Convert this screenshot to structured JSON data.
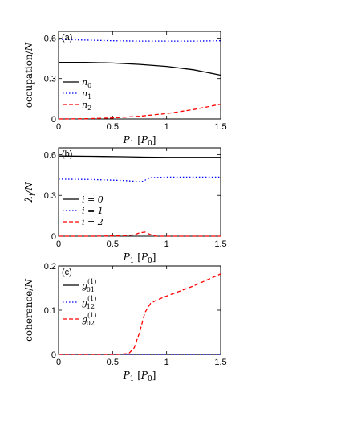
{
  "chart_data": [
    {
      "type": "line",
      "panel_label": "(a)",
      "xlabel": "P_1 [P_0]",
      "ylabel": "occupation/N",
      "xlim": [
        0,
        1.5
      ],
      "ylim": [
        0,
        0.65
      ],
      "xticks": [
        "0",
        "0.5",
        "1",
        "1.5"
      ],
      "xtick_values": [
        0,
        0.5,
        1,
        1.5
      ],
      "yticks": [
        "0",
        "0.3",
        "0.6"
      ],
      "ytick_values": [
        0,
        0.3,
        0.6
      ],
      "legend_position": "bottom-left",
      "series": [
        {
          "name": "n_0",
          "style": "solid",
          "color": "#000000",
          "x": [
            0,
            0.25,
            0.5,
            0.75,
            1.0,
            1.25,
            1.5
          ],
          "y": [
            0.42,
            0.42,
            0.415,
            0.405,
            0.39,
            0.365,
            0.325
          ]
        },
        {
          "name": "n_1",
          "style": "dotted",
          "color": "#0000ff",
          "x": [
            0,
            0.25,
            0.5,
            0.75,
            1.0,
            1.25,
            1.5
          ],
          "y": [
            0.59,
            0.585,
            0.58,
            0.578,
            0.578,
            0.578,
            0.58
          ]
        },
        {
          "name": "n_2",
          "style": "dashed",
          "color": "#ff0000",
          "x": [
            0,
            0.25,
            0.5,
            0.75,
            1.0,
            1.25,
            1.5
          ],
          "y": [
            0.0,
            0.002,
            0.008,
            0.02,
            0.04,
            0.07,
            0.11
          ]
        }
      ]
    },
    {
      "type": "line",
      "panel_label": "(b)",
      "xlabel": "P_1 [P_0]",
      "ylabel": "λ_i/N",
      "xlim": [
        0,
        1.5
      ],
      "ylim": [
        0,
        0.65
      ],
      "xticks": [
        "0",
        "0.5",
        "1",
        "1.5"
      ],
      "xtick_values": [
        0,
        0.5,
        1,
        1.5
      ],
      "yticks": [
        "0",
        "0.3",
        "0.6"
      ],
      "ytick_values": [
        0,
        0.3,
        0.6
      ],
      "legend_position": "bottom-left",
      "series": [
        {
          "name": "i = 0",
          "style": "solid",
          "color": "#000000",
          "x": [
            0,
            0.3,
            0.6,
            0.8,
            1.0,
            1.25,
            1.5
          ],
          "y": [
            0.59,
            0.588,
            0.585,
            0.582,
            0.58,
            0.58,
            0.58
          ]
        },
        {
          "name": "i = 1",
          "style": "dotted",
          "color": "#0000ff",
          "x": [
            0,
            0.3,
            0.6,
            0.7,
            0.75,
            0.78,
            0.85,
            1.0,
            1.25,
            1.5
          ],
          "y": [
            0.42,
            0.418,
            0.41,
            0.405,
            0.4,
            0.405,
            0.43,
            0.435,
            0.435,
            0.435
          ]
        },
        {
          "name": "i = 2",
          "style": "dashed",
          "color": "#ff0000",
          "x": [
            0,
            0.3,
            0.6,
            0.7,
            0.75,
            0.8,
            0.85,
            0.9,
            1.2,
            1.5
          ],
          "y": [
            0.0,
            0.0,
            0.003,
            0.01,
            0.025,
            0.03,
            0.012,
            0.0,
            0.0,
            0.0
          ]
        }
      ]
    },
    {
      "type": "line",
      "panel_label": "(c)",
      "xlabel": "P_1 [P_0]",
      "ylabel": "coherence/N",
      "xlim": [
        0,
        1.5
      ],
      "ylim": [
        0,
        0.2
      ],
      "xticks": [
        "0",
        "0.5",
        "1",
        "1.5"
      ],
      "xtick_values": [
        0,
        0.5,
        1,
        1.5
      ],
      "yticks": [
        "0",
        "0.1",
        "0.2"
      ],
      "ytick_values": [
        0,
        0.1,
        0.2
      ],
      "legend_position": "top-left",
      "series": [
        {
          "name": "g_01^(1)",
          "style": "solid",
          "color": "#000000",
          "x": [
            0,
            1.5
          ],
          "y": [
            0.0,
            0.0
          ]
        },
        {
          "name": "g_12^(1)",
          "style": "dotted",
          "color": "#0000ff",
          "x": [
            0,
            1.5
          ],
          "y": [
            0.0,
            0.0
          ]
        },
        {
          "name": "g_02^(1)",
          "style": "dashed",
          "color": "#ff0000",
          "x": [
            0,
            0.55,
            0.65,
            0.7,
            0.75,
            0.8,
            0.85,
            0.9,
            1.0,
            1.25,
            1.5
          ],
          "y": [
            0.0,
            0.0,
            0.002,
            0.015,
            0.05,
            0.095,
            0.115,
            0.122,
            0.132,
            0.155,
            0.182
          ]
        }
      ]
    }
  ]
}
